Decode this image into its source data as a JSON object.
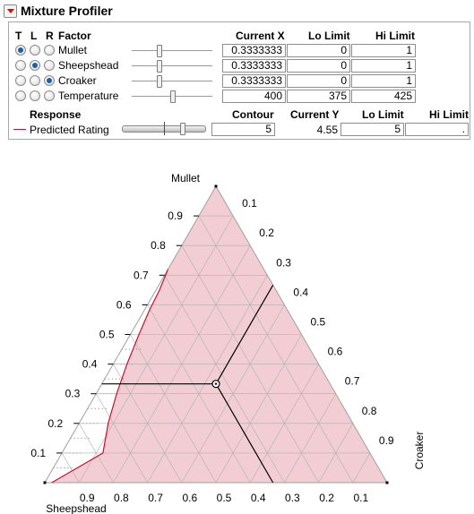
{
  "panel": {
    "title": "Mixture Profiler"
  },
  "factors_table": {
    "headers": {
      "t": "T",
      "l": "L",
      "r": "R",
      "factor": "Factor",
      "current_x": "Current X",
      "lo_limit": "Lo Limit",
      "hi_limit": "Hi Limit"
    },
    "rows": [
      {
        "name": "Mullet",
        "current_x": "0.3333333",
        "lo": "0",
        "hi": "1",
        "t": true,
        "l": false,
        "r": false,
        "level": 0.3333
      },
      {
        "name": "Sheepshead",
        "current_x": "0.3333333",
        "lo": "0",
        "hi": "1",
        "t": false,
        "l": true,
        "r": false,
        "level": 0.3333
      },
      {
        "name": "Croaker",
        "current_x": "0.3333333",
        "lo": "0",
        "hi": "1",
        "t": false,
        "l": false,
        "r": true,
        "level": 0.3333
      },
      {
        "name": "Temperature",
        "current_x": "400",
        "lo": "375",
        "hi": "425",
        "t": false,
        "l": false,
        "r": false,
        "level": 0.5
      }
    ]
  },
  "response_table": {
    "headers": {
      "response": "Response",
      "contour": "Contour",
      "current_y": "Current Y",
      "lo_limit": "Lo Limit",
      "hi_limit": "Hi Limit"
    },
    "rows": [
      {
        "name": "Predicted Rating",
        "contour": "5",
        "current_y": "4.55",
        "lo": "5",
        "hi": ".",
        "color": "#c8102e",
        "level": 0.73
      }
    ]
  },
  "chart_data": {
    "type": "ternary",
    "vertices": {
      "top": "Mullet",
      "left": "Sheepshead",
      "right": "Croaker"
    },
    "left_edge_ticks": [
      "0.1",
      "0.2",
      "0.3",
      "0.4",
      "0.5",
      "0.6",
      "0.7",
      "0.8",
      "0.9"
    ],
    "right_edge_ticks": [
      "0.1",
      "0.2",
      "0.3",
      "0.4",
      "0.5",
      "0.6",
      "0.7",
      "0.8",
      "0.9"
    ],
    "bottom_edge_ticks": [
      "0.9",
      "0.8",
      "0.7",
      "0.6",
      "0.5",
      "0.4",
      "0.3",
      "0.2",
      "0.1"
    ],
    "current_point": {
      "mullet": 0.3333333,
      "sheepshead": 0.3333333,
      "croaker": 0.3333333
    },
    "contour": {
      "response": "Predicted Rating",
      "level": 5
    },
    "contour_curve": [
      {
        "mullet": 0.72,
        "sheepshead": 0.28,
        "croaker": 0.0
      },
      {
        "mullet": 0.65,
        "sheepshead": 0.34,
        "croaker": 0.01
      },
      {
        "mullet": 0.58,
        "sheepshead": 0.405,
        "croaker": 0.015
      },
      {
        "mullet": 0.5,
        "sheepshead": 0.475,
        "croaker": 0.025
      },
      {
        "mullet": 0.4,
        "sheepshead": 0.56,
        "croaker": 0.04
      },
      {
        "mullet": 0.3,
        "sheepshead": 0.64,
        "croaker": 0.06
      },
      {
        "mullet": 0.2,
        "sheepshead": 0.715,
        "croaker": 0.085
      },
      {
        "mullet": 0.1,
        "sheepshead": 0.78,
        "croaker": 0.12
      },
      {
        "mullet": 0.0,
        "sheepshead": 0.98,
        "croaker": 0.02
      }
    ],
    "feasible_fill": "#f2cdd3",
    "grid_step": 0.1
  }
}
